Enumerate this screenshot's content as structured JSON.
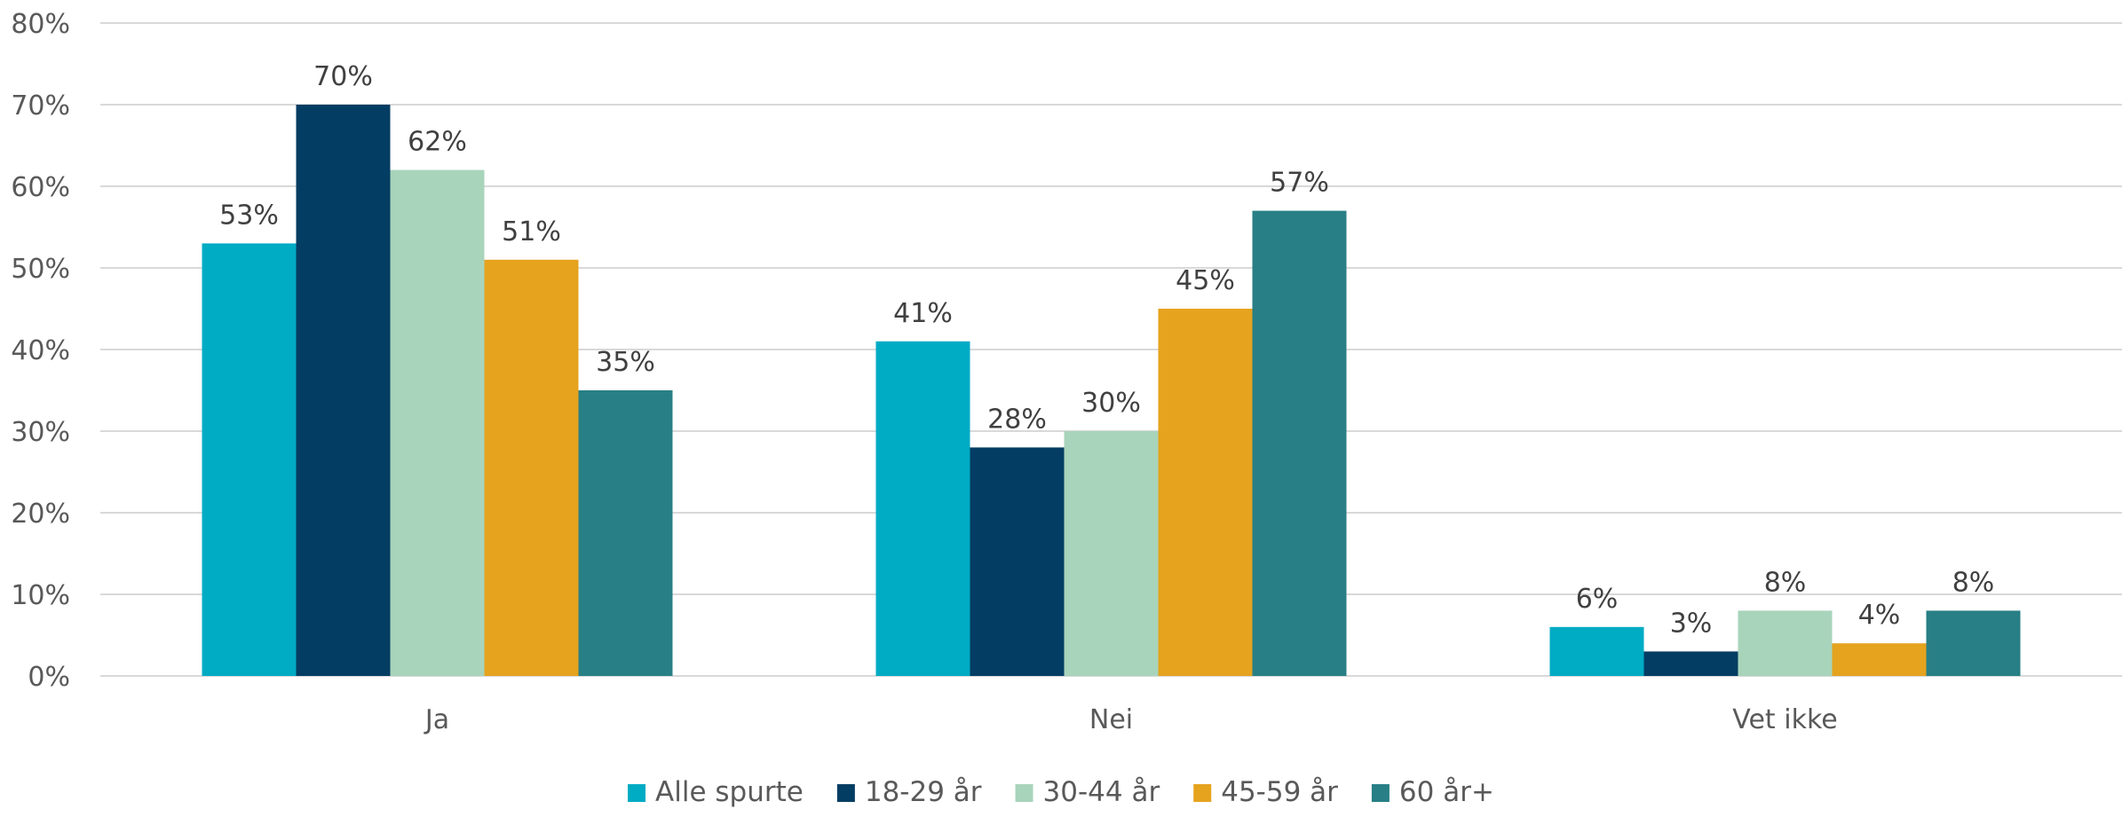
{
  "chart_data": {
    "type": "bar",
    "title": "",
    "xlabel": "",
    "ylabel": "",
    "categories": [
      "Ja",
      "Nei",
      "Vet ikke"
    ],
    "series": [
      {
        "name": "Alle spurte",
        "values": [
          53,
          41,
          6
        ],
        "labels": [
          "53%",
          "41%",
          "6%"
        ],
        "color": "#00abc4"
      },
      {
        "name": "18-29 år",
        "values": [
          70,
          28,
          3
        ],
        "labels": [
          "70%",
          "28%",
          "3%"
        ],
        "color": "#043d63"
      },
      {
        "name": "30-44 år",
        "values": [
          62,
          30,
          8
        ],
        "labels": [
          "62%",
          "30%",
          "8%"
        ],
        "color": "#a8d4bb"
      },
      {
        "name": "45-59 år",
        "values": [
          51,
          45,
          4
        ],
        "labels": [
          "51%",
          "45%",
          "4%"
        ],
        "color": "#e5a31e"
      },
      {
        "name": "60 år+",
        "values": [
          35,
          57,
          8
        ],
        "labels": [
          "35%",
          "57%",
          "8%"
        ],
        "color": "#287f85"
      }
    ],
    "ylim": [
      0,
      80
    ],
    "yticks": [
      0,
      10,
      20,
      30,
      40,
      50,
      60,
      70,
      80
    ],
    "ytick_labels": [
      "0%",
      "10%",
      "20%",
      "30%",
      "40%",
      "50%",
      "60%",
      "70%",
      "80%"
    ],
    "grid": true,
    "legend": "bottom"
  }
}
